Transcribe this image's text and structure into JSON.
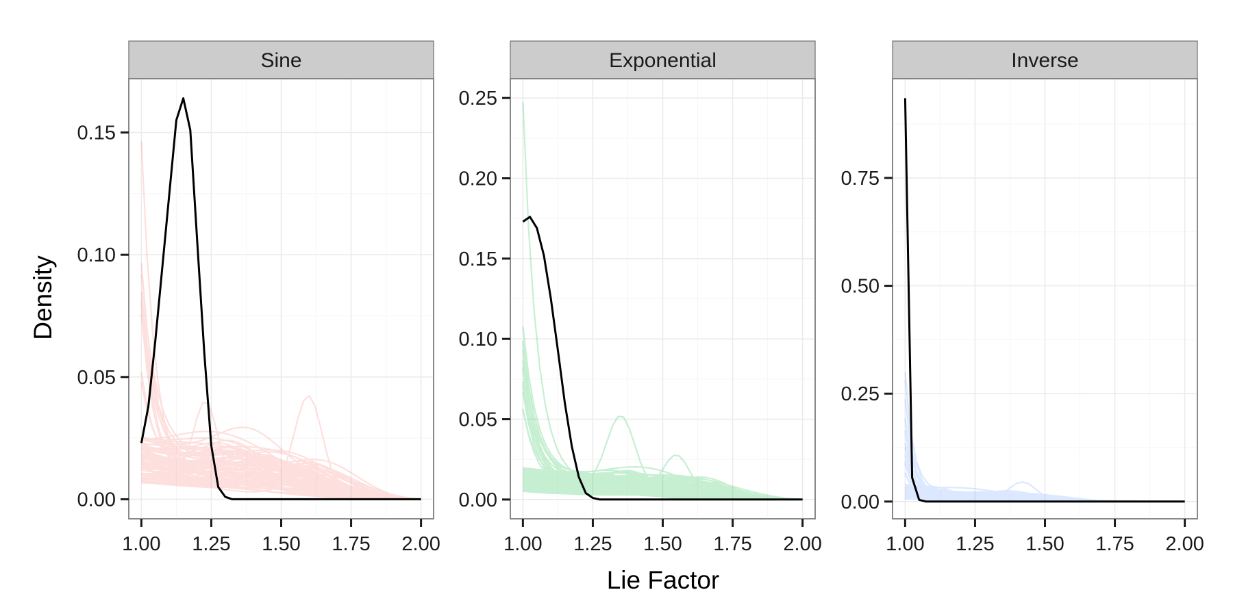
{
  "chart_data": {
    "type": "line",
    "xlabel": "Lie Factor",
    "ylabel": "Density",
    "x_ticks": [
      1.0,
      1.25,
      1.5,
      1.75,
      2.0
    ],
    "x_tick_labels": [
      "1.00",
      "1.25",
      "1.50",
      "1.75",
      "2.00"
    ],
    "xlim": [
      0.955,
      2.045
    ],
    "panels": [
      {
        "label": "Sine",
        "color": "#f8766d",
        "ylim": [
          -0.008,
          0.172
        ],
        "y_ticks": [
          0,
          0.05,
          0.1,
          0.15
        ],
        "y_tick_labels": [
          "0.00",
          "0.05",
          "0.10",
          "0.15"
        ],
        "observed": {
          "x": [
            1.0,
            1.025,
            1.05,
            1.075,
            1.1,
            1.125,
            1.15,
            1.175,
            1.2,
            1.225,
            1.25,
            1.275,
            1.3,
            1.325,
            1.35,
            1.5,
            1.75,
            2.0
          ],
          "y": [
            0.023,
            0.038,
            0.065,
            0.095,
            0.125,
            0.155,
            0.164,
            0.151,
            0.105,
            0.06,
            0.022,
            0.005,
            0.001,
            0.0,
            0.0,
            0.0,
            0.0,
            0.0
          ]
        }
      },
      {
        "label": "Exponential",
        "color": "#00ba38",
        "ylim": [
          -0.012,
          0.262
        ],
        "y_ticks": [
          0,
          0.05,
          0.1,
          0.15,
          0.2,
          0.25
        ],
        "y_tick_labels": [
          "0.00",
          "0.05",
          "0.10",
          "0.15",
          "0.20",
          "0.25"
        ],
        "observed": {
          "x": [
            1.0,
            1.025,
            1.05,
            1.075,
            1.1,
            1.125,
            1.15,
            1.175,
            1.2,
            1.225,
            1.25,
            1.275,
            1.3,
            1.5,
            1.75,
            2.0
          ],
          "y": [
            0.173,
            0.176,
            0.169,
            0.152,
            0.125,
            0.093,
            0.06,
            0.033,
            0.014,
            0.004,
            0.001,
            0.0,
            0.0,
            0.0,
            0.0,
            0.0
          ]
        }
      },
      {
        "label": "Inverse",
        "color": "#619cff",
        "ylim": [
          -0.04,
          0.98
        ],
        "y_ticks": [
          0,
          0.25,
          0.5,
          0.75
        ],
        "y_tick_labels": [
          "0.00",
          "0.25",
          "0.50",
          "0.75"
        ],
        "observed": {
          "x": [
            1.0,
            1.025,
            1.05,
            1.075,
            1.1,
            1.25,
            1.5,
            1.75,
            2.0
          ],
          "y": [
            0.935,
            0.055,
            0.004,
            0.0,
            0.0,
            0.0,
            0.0,
            0.0,
            0.0
          ]
        }
      }
    ]
  }
}
